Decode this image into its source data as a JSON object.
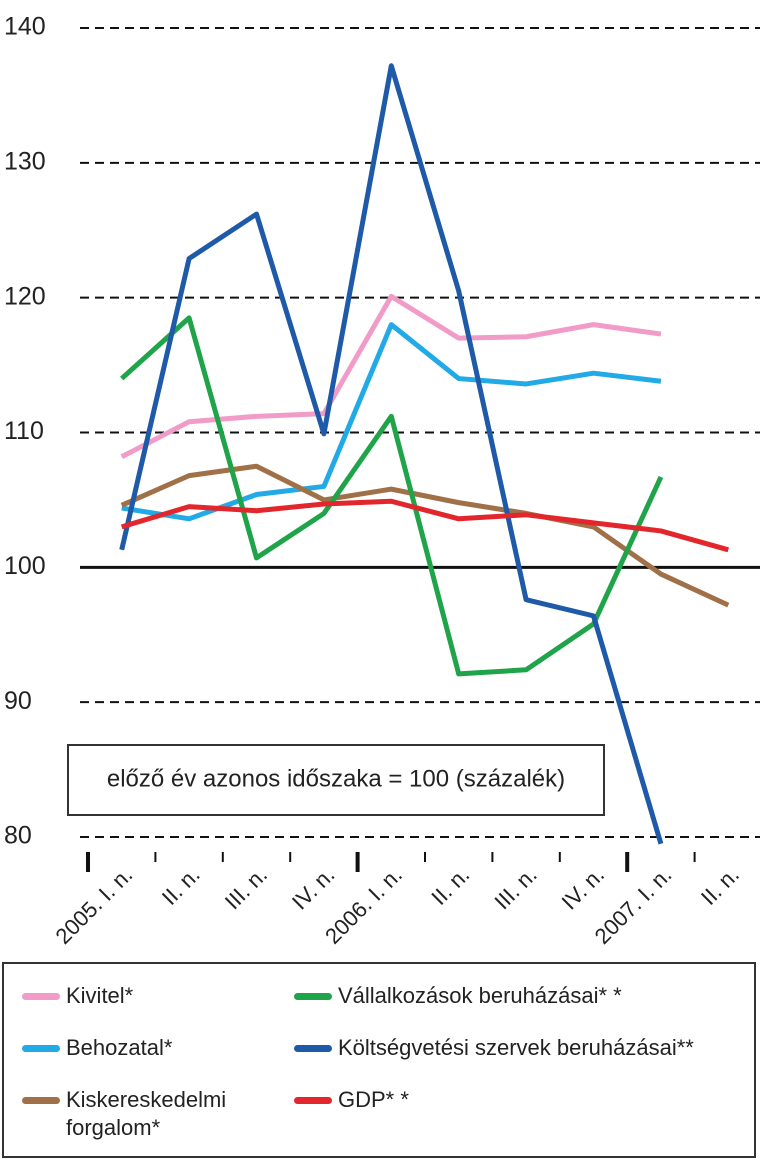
{
  "chart_data": {
    "type": "line",
    "annotation": "előző év azonos időszaka = 100 (százalék)",
    "categories": [
      "2005. I. n.",
      "II. n.",
      "III. n.",
      "IV. n.",
      "2006. I. n.",
      "II. n.",
      "III. n.",
      "IV. n.",
      "2007. I. n.",
      "II. n."
    ],
    "series": [
      {
        "name": "Kivitel*",
        "color": "#f19cc8",
        "values": [
          108.2,
          110.8,
          111.2,
          111.4,
          120.1,
          117.0,
          117.1,
          118.0,
          117.3,
          null
        ]
      },
      {
        "name": "Behozatal*",
        "color": "#22aae6",
        "values": [
          104.4,
          103.6,
          105.4,
          106.0,
          118.0,
          114.0,
          113.6,
          114.4,
          113.8,
          null
        ]
      },
      {
        "name": "Kiskereskedelmi forgalom*",
        "color": "#a07048",
        "values": [
          104.6,
          106.8,
          107.5,
          105.0,
          105.8,
          104.8,
          104.0,
          103.0,
          99.5,
          97.2
        ]
      },
      {
        "name": "Vállalkozások beruházásai* *",
        "color": "#1fa44a",
        "values": [
          114.0,
          118.5,
          100.7,
          104.0,
          111.2,
          92.1,
          92.4,
          95.8,
          106.7,
          null
        ]
      },
      {
        "name": "Költségvetési szervek beruházásai**",
        "color": "#1e5aa8",
        "values": [
          101.3,
          122.9,
          126.2,
          109.9,
          137.2,
          120.5,
          97.6,
          96.4,
          79.5,
          null
        ]
      },
      {
        "name": "GDP* *",
        "color": "#e3262b",
        "values": [
          103.0,
          104.5,
          104.2,
          104.7,
          104.9,
          103.6,
          103.9,
          103.3,
          102.7,
          101.3
        ]
      }
    ],
    "ylim": [
      80,
      140
    ],
    "yticks": [
      80,
      90,
      100,
      110,
      120,
      130,
      140
    ],
    "reference_line": 100,
    "grid": true
  }
}
